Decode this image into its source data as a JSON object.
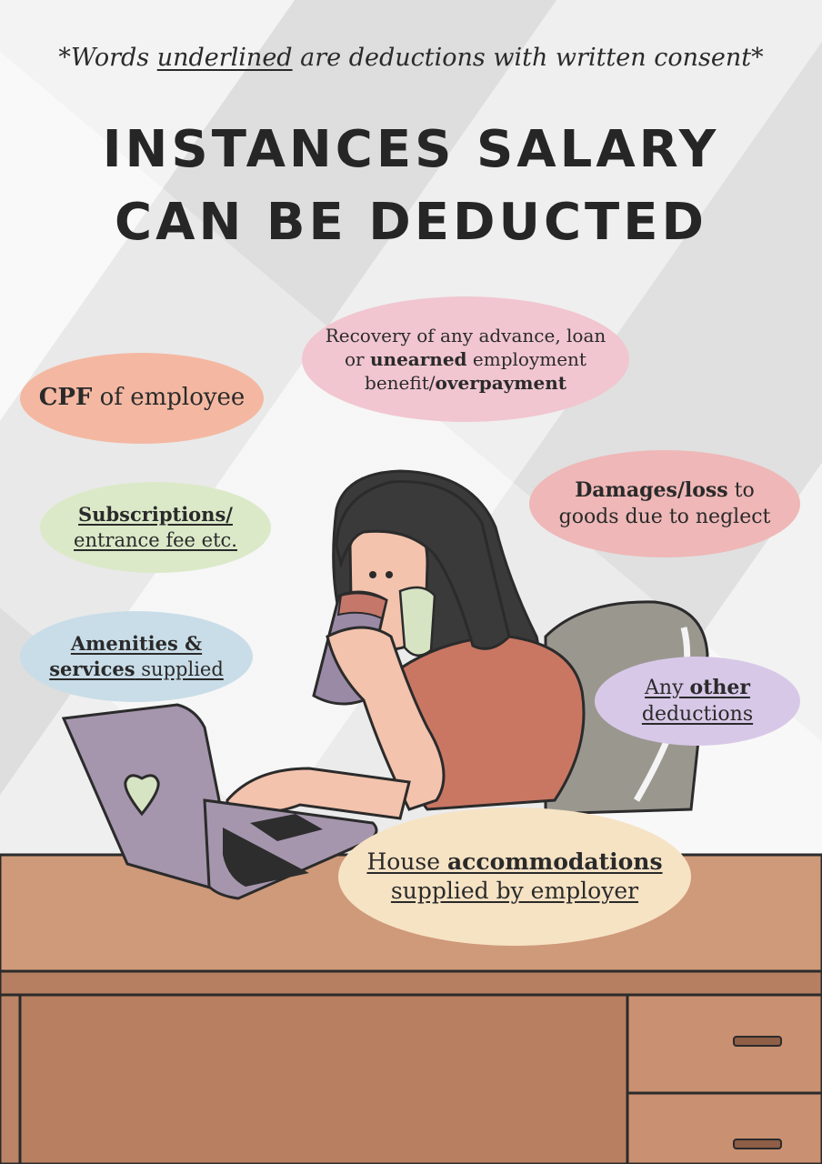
{
  "header": {
    "note_prefix": "*Words ",
    "note_underlined": "underlined",
    "note_suffix": " are deductions with written consent*",
    "title_line1": "INSTANCES SALARY",
    "title_line2": "CAN BE DEDUCTED"
  },
  "bubbles": {
    "cpf": {
      "bold": "CPF",
      "rest": " of employee",
      "color": "#f4b8a2"
    },
    "recovery": {
      "line1": "Recovery of any advance, loan",
      "line2_pre": "or ",
      "line2_bold": "unearned",
      "line2_post": " employment",
      "line3_pre": "benefit/",
      "line3_bold": "overpayment",
      "color": "#f1c6d0"
    },
    "damages": {
      "bold": "Damages/loss",
      "rest": " to",
      "line2": "goods due to neglect",
      "color": "#efb7b7"
    },
    "subscriptions": {
      "line1": "Subscriptions/",
      "line2": "entrance fee etc.",
      "color": "#dbe9c8"
    },
    "amenities": {
      "line1": "Amenities &",
      "line2_bold": "services",
      "line2_rest": " supplied",
      "color": "#c9dde8"
    },
    "other": {
      "pre": "Any ",
      "bold": "other",
      "line2": "deductions",
      "color": "#d8c8e8"
    },
    "house": {
      "pre": "House ",
      "bold": "accommodations",
      "line2": "supplied by employer",
      "color": "#f6e3c4"
    }
  },
  "icons": [
    "heart-icon"
  ]
}
